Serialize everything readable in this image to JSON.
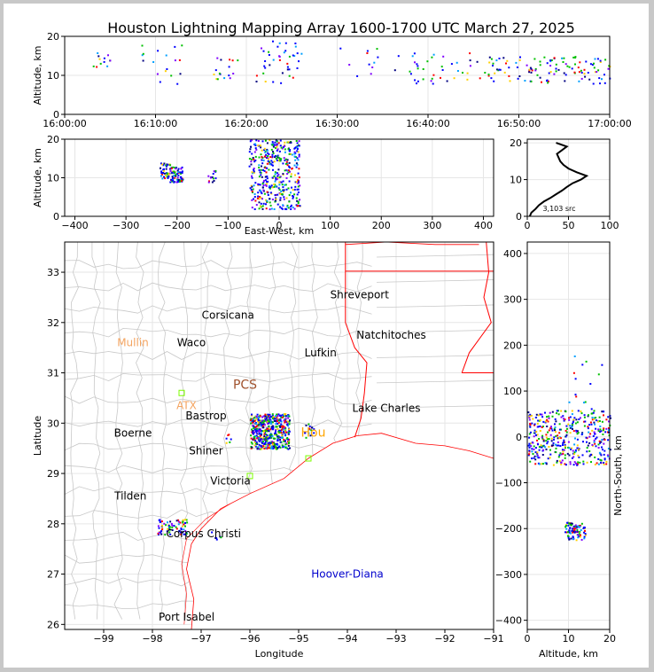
{
  "chart_data": [
    {
      "type": "scatter",
      "panel": "altitude-time",
      "title": "Houston Lightning Mapping Array 1600-1700 UTC March 27, 2025",
      "xlabel": "",
      "ylabel": "Altitude, km",
      "x_ticks": [
        "16:00:00",
        "16:10:00",
        "16:20:00",
        "16:30:00",
        "16:40:00",
        "16:50:00",
        "17:00:00"
      ],
      "y_ticks": [
        "0",
        "10",
        "20"
      ],
      "xlim": [
        "16:00:00",
        "17:00:00"
      ],
      "ylim": [
        0,
        20
      ],
      "grid": true,
      "source_clusters": [
        {
          "t_min": [
            3,
            5
          ],
          "alt_km": [
            12,
            16
          ],
          "count": 12
        },
        {
          "t_min": [
            8,
            13
          ],
          "alt_km": [
            8,
            18
          ],
          "count": 18
        },
        {
          "t_min": [
            16,
            19
          ],
          "alt_km": [
            8,
            15
          ],
          "count": 16
        },
        {
          "t_min": [
            21,
            26
          ],
          "alt_km": [
            8,
            20
          ],
          "count": 40
        },
        {
          "t_min": [
            30,
            38
          ],
          "alt_km": [
            10,
            18
          ],
          "count": 14
        },
        {
          "t_min": [
            38,
            46
          ],
          "alt_km": [
            8,
            16
          ],
          "count": 36
        },
        {
          "t_min": [
            46,
            60
          ],
          "alt_km": [
            8,
            15
          ],
          "count": 120
        }
      ]
    },
    {
      "type": "scatter",
      "panel": "altitude-east-west",
      "xlabel": "East-West, km",
      "ylabel": "Altitude, km",
      "x_ticks": [
        "−400",
        "−300",
        "−200",
        "−100",
        "0",
        "100",
        "200",
        "300",
        "400"
      ],
      "y_ticks": [
        "0",
        "10",
        "20"
      ],
      "xlim": [
        -420,
        420
      ],
      "ylim": [
        0,
        20
      ],
      "grid": true,
      "source_clusters": [
        {
          "ew_km": [
            -235,
            -215
          ],
          "alt_km": [
            10,
            14
          ],
          "count": 40
        },
        {
          "ew_km": [
            -215,
            -190
          ],
          "alt_km": [
            9,
            13
          ],
          "count": 70
        },
        {
          "ew_km": [
            -140,
            -125
          ],
          "alt_km": [
            9,
            12
          ],
          "count": 15
        },
        {
          "ew_km": [
            -60,
            40
          ],
          "alt_km": [
            2,
            20
          ],
          "count": 420
        }
      ]
    },
    {
      "type": "line",
      "panel": "altitude-histogram",
      "annotation": "3,103 src",
      "x_ticks": [
        "0",
        "50",
        "100"
      ],
      "y_ticks": [
        "0",
        "10",
        "20"
      ],
      "xlim": [
        0,
        100
      ],
      "ylim": [
        0,
        21
      ],
      "grid": true,
      "series": [
        {
          "alt_km": [
            0,
            1,
            2,
            3,
            4,
            5,
            6,
            7,
            8,
            9,
            10,
            11,
            12,
            13,
            14,
            15,
            16,
            17,
            18,
            19,
            20
          ],
          "count": [
            3,
            5,
            10,
            14,
            20,
            28,
            35,
            42,
            48,
            55,
            65,
            72,
            60,
            50,
            44,
            40,
            38,
            36,
            42,
            48,
            35
          ]
        }
      ]
    },
    {
      "type": "scatter",
      "panel": "plan-view-map",
      "xlabel": "Longitude",
      "ylabel": "Latitude",
      "x_ticks": [
        "−99",
        "−98",
        "−97",
        "−96",
        "−95",
        "−94",
        "−93",
        "−92",
        "−91"
      ],
      "y_ticks": [
        "26",
        "27",
        "28",
        "29",
        "30",
        "31",
        "32",
        "33"
      ],
      "xlim": [
        -99.8,
        -91
      ],
      "ylim": [
        25.9,
        33.6
      ],
      "grid": true,
      "place_labels": [
        {
          "name": "Shreveport",
          "lon": -93.75,
          "lat": 32.55,
          "color": "#000000"
        },
        {
          "name": "Corsicana",
          "lon": -96.45,
          "lat": 32.15,
          "color": "#000000"
        },
        {
          "name": "Natchitoches",
          "lon": -93.1,
          "lat": 31.75,
          "color": "#000000"
        },
        {
          "name": "Mullin",
          "lon": -98.4,
          "lat": 31.6,
          "color": "#f4a460"
        },
        {
          "name": "Waco",
          "lon": -97.2,
          "lat": 31.6,
          "color": "#000000"
        },
        {
          "name": "Lufkin",
          "lon": -94.55,
          "lat": 31.4,
          "color": "#000000"
        },
        {
          "name": "PCS",
          "lon": -96.1,
          "lat": 30.75,
          "color": "#a0522d"
        },
        {
          "name": "ATX",
          "lon": -97.3,
          "lat": 30.35,
          "color": "#f4a460"
        },
        {
          "name": "Lake Charles",
          "lon": -93.2,
          "lat": 30.3,
          "color": "#000000"
        },
        {
          "name": "Bastrop",
          "lon": -96.9,
          "lat": 30.15,
          "color": "#000000"
        },
        {
          "name": "Boerne",
          "lon": -98.4,
          "lat": 29.8,
          "color": "#000000"
        },
        {
          "name": "Hou",
          "lon": -94.7,
          "lat": 29.8,
          "color": "#ffa500"
        },
        {
          "name": "Shiner",
          "lon": -96.9,
          "lat": 29.45,
          "color": "#000000"
        },
        {
          "name": "Victoria",
          "lon": -96.4,
          "lat": 28.85,
          "color": "#000000"
        },
        {
          "name": "Tilden",
          "lon": -98.45,
          "lat": 28.55,
          "color": "#000000"
        },
        {
          "name": "Corpus Christi",
          "lon": -96.95,
          "lat": 27.8,
          "color": "#000000"
        },
        {
          "name": "Hoover-Diana",
          "lon": -94.0,
          "lat": 27.0,
          "color": "#0000cd"
        },
        {
          "name": "Port Isabel",
          "lon": -97.3,
          "lat": 26.15,
          "color": "#000000"
        }
      ],
      "station_markers": [
        {
          "lon": -97.4,
          "lat": 30.6
        },
        {
          "lon": -96.0,
          "lat": 28.95
        },
        {
          "lon": -94.8,
          "lat": 29.3
        }
      ],
      "source_clusters": [
        {
          "lon": [
            -96.0,
            -95.2
          ],
          "lat": [
            29.5,
            30.2
          ],
          "count": 500
        },
        {
          "lon": [
            -94.9,
            -94.7
          ],
          "lat": [
            29.7,
            30.0
          ],
          "count": 15
        },
        {
          "lon": [
            -97.9,
            -97.3
          ],
          "lat": [
            27.8,
            28.1
          ],
          "count": 70
        },
        {
          "lon": [
            -96.8,
            -96.6
          ],
          "lat": [
            27.7,
            27.85
          ],
          "count": 6
        },
        {
          "lon": [
            -96.5,
            -96.4
          ],
          "lat": [
            29.6,
            29.8
          ],
          "count": 6
        }
      ]
    },
    {
      "type": "scatter",
      "panel": "north-south-altitude",
      "xlabel": "Altitude, km",
      "ylabel": "North-South, km",
      "x_ticks": [
        "0",
        "10",
        "20"
      ],
      "y_ticks": [
        "−400",
        "−300",
        "−200",
        "−100",
        "0",
        "100",
        "200",
        "300",
        "400"
      ],
      "xlim": [
        0,
        20
      ],
      "ylim": [
        -420,
        425
      ],
      "grid": true,
      "source_clusters": [
        {
          "alt_km": [
            0,
            20
          ],
          "ns_km": [
            -60,
            60
          ],
          "count": 420
        },
        {
          "alt_km": [
            9,
            14
          ],
          "ns_km": [
            -225,
            -185
          ],
          "count": 90
        },
        {
          "alt_km": [
            10,
            18
          ],
          "ns_km": [
            60,
            180
          ],
          "count": 14
        }
      ]
    }
  ]
}
